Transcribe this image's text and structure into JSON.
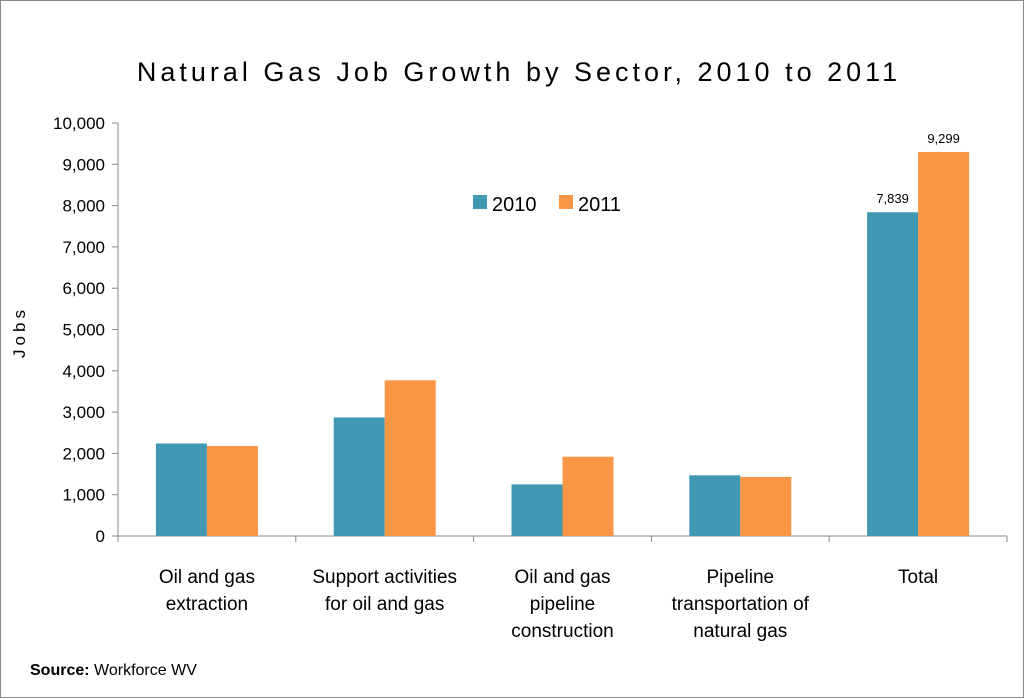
{
  "chart_data": {
    "type": "bar",
    "title": "Natural Gas Job Growth by Sector, 2010 to 2011",
    "ylabel": "Jobs",
    "xlabel": "",
    "ylim": [
      0,
      10000
    ],
    "yticks": [
      0,
      1000,
      2000,
      3000,
      4000,
      5000,
      6000,
      7000,
      8000,
      9000,
      10000
    ],
    "ytick_labels": [
      "0",
      "1,000",
      "2,000",
      "3,000",
      "4,000",
      "5,000",
      "6,000",
      "7,000",
      "8,000",
      "9,000",
      "10,000"
    ],
    "categories": [
      [
        "Oil and gas",
        "extraction"
      ],
      [
        "Support activities",
        "for oil and gas"
      ],
      [
        "Oil and gas",
        "pipeline",
        "construction"
      ],
      [
        "Pipeline",
        "transportation of",
        "natural gas"
      ],
      [
        "Total"
      ]
    ],
    "series": [
      {
        "name": "2010",
        "color": "#4198b2",
        "values": [
          2240,
          2870,
          1250,
          1470,
          7839
        ]
      },
      {
        "name": "2011",
        "color": "#f79646",
        "values": [
          2180,
          3770,
          1920,
          1430,
          9299
        ]
      }
    ],
    "data_labels": [
      {
        "series": 0,
        "category": 4,
        "text": "7,839"
      },
      {
        "series": 1,
        "category": 4,
        "text": "9,299"
      }
    ],
    "legend": {
      "position": "top-center"
    },
    "grid": false
  },
  "source": {
    "label": "Source:",
    "text": "Workforce WV"
  }
}
